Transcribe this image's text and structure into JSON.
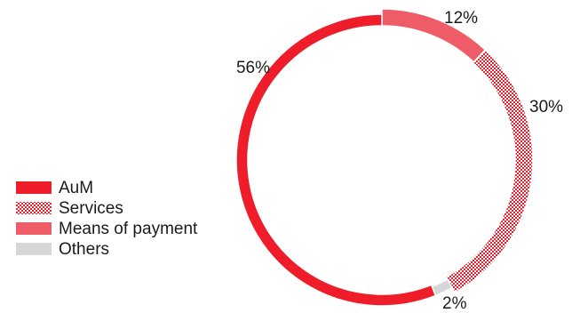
{
  "chart_data": {
    "type": "pie",
    "variant": "donut",
    "slices": [
      {
        "name": "Means of payment",
        "value": 12,
        "label": "12%",
        "color": "#ef5b67",
        "pattern": "solid"
      },
      {
        "name": "Services",
        "value": 30,
        "label": "30%",
        "color": "#ef1c2a",
        "pattern": "checker"
      },
      {
        "name": "Others",
        "value": 2,
        "label": "2%",
        "color": "#d6d6d6",
        "pattern": "solid"
      },
      {
        "name": "AuM",
        "value": 56,
        "label": "56%",
        "color": "#ef1c2a",
        "pattern": "solid"
      }
    ],
    "legend": [
      {
        "label": "AuM",
        "color": "#ef1c2a",
        "pattern": "solid"
      },
      {
        "label": "Services",
        "color": "#ef1c2a",
        "pattern": "checker"
      },
      {
        "label": "Means of payment",
        "color": "#ef5b67",
        "pattern": "solid"
      },
      {
        "label": "Others",
        "color": "#d6d6d6",
        "pattern": "solid"
      }
    ],
    "legend_position": "left",
    "start_angle_deg": 0,
    "direction": "clockwise",
    "title": "",
    "xlabel": "",
    "ylabel": ""
  }
}
